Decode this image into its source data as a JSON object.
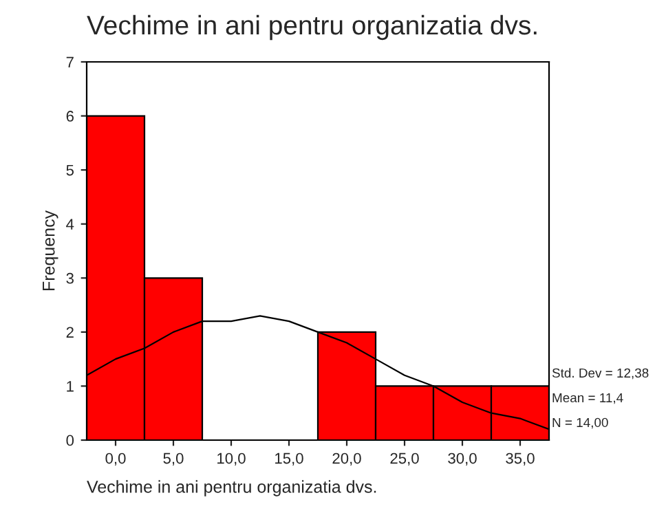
{
  "chart_data": {
    "type": "histogram",
    "title": "Vechime in ani pentru organizatia dvs.",
    "xlabel": "Vechime in ani pentru organizatia dvs.",
    "ylabel": "Frequency",
    "series": [
      {
        "color": "#ff0000",
        "bins": [
          -2.5,
          2.5,
          7.5,
          12.5,
          17.5,
          22.5,
          27.5,
          32.5,
          37.5
        ],
        "values": [
          6,
          3,
          0,
          0,
          2,
          1,
          1,
          1
        ]
      },
      {
        "type": "line",
        "color": "#000000",
        "x": [
          -2.5,
          0,
          2.5,
          5,
          7.5,
          10,
          12.5,
          15,
          17.5,
          20,
          22.5,
          25,
          27.5,
          30,
          32.5,
          35,
          37.5
        ],
        "values": [
          1.2,
          1.5,
          1.7,
          2.0,
          2.2,
          2.2,
          2.3,
          2.2,
          2.0,
          1.8,
          1.5,
          1.2,
          1.0,
          0.7,
          0.5,
          0.4,
          0.2
        ]
      }
    ],
    "xlim": [
      -2.5,
      37.5
    ],
    "xticks": [
      {
        "value": 0,
        "label": "0,0"
      },
      {
        "value": 5,
        "label": "5,0"
      },
      {
        "value": 10,
        "label": "10,0"
      },
      {
        "value": 15,
        "label": "15,0"
      },
      {
        "value": 20,
        "label": "20,0"
      },
      {
        "value": 25,
        "label": "25,0"
      },
      {
        "value": 30,
        "label": "30,0"
      },
      {
        "value": 35,
        "label": "35,0"
      }
    ],
    "ylim": [
      0,
      7
    ],
    "yticks": [
      0,
      1,
      2,
      3,
      4,
      5,
      6,
      7
    ],
    "grid": false,
    "legend": false,
    "annotations": [
      "Std. Dev = 12,38",
      "Mean = 11,4",
      "N = 14,00"
    ]
  }
}
